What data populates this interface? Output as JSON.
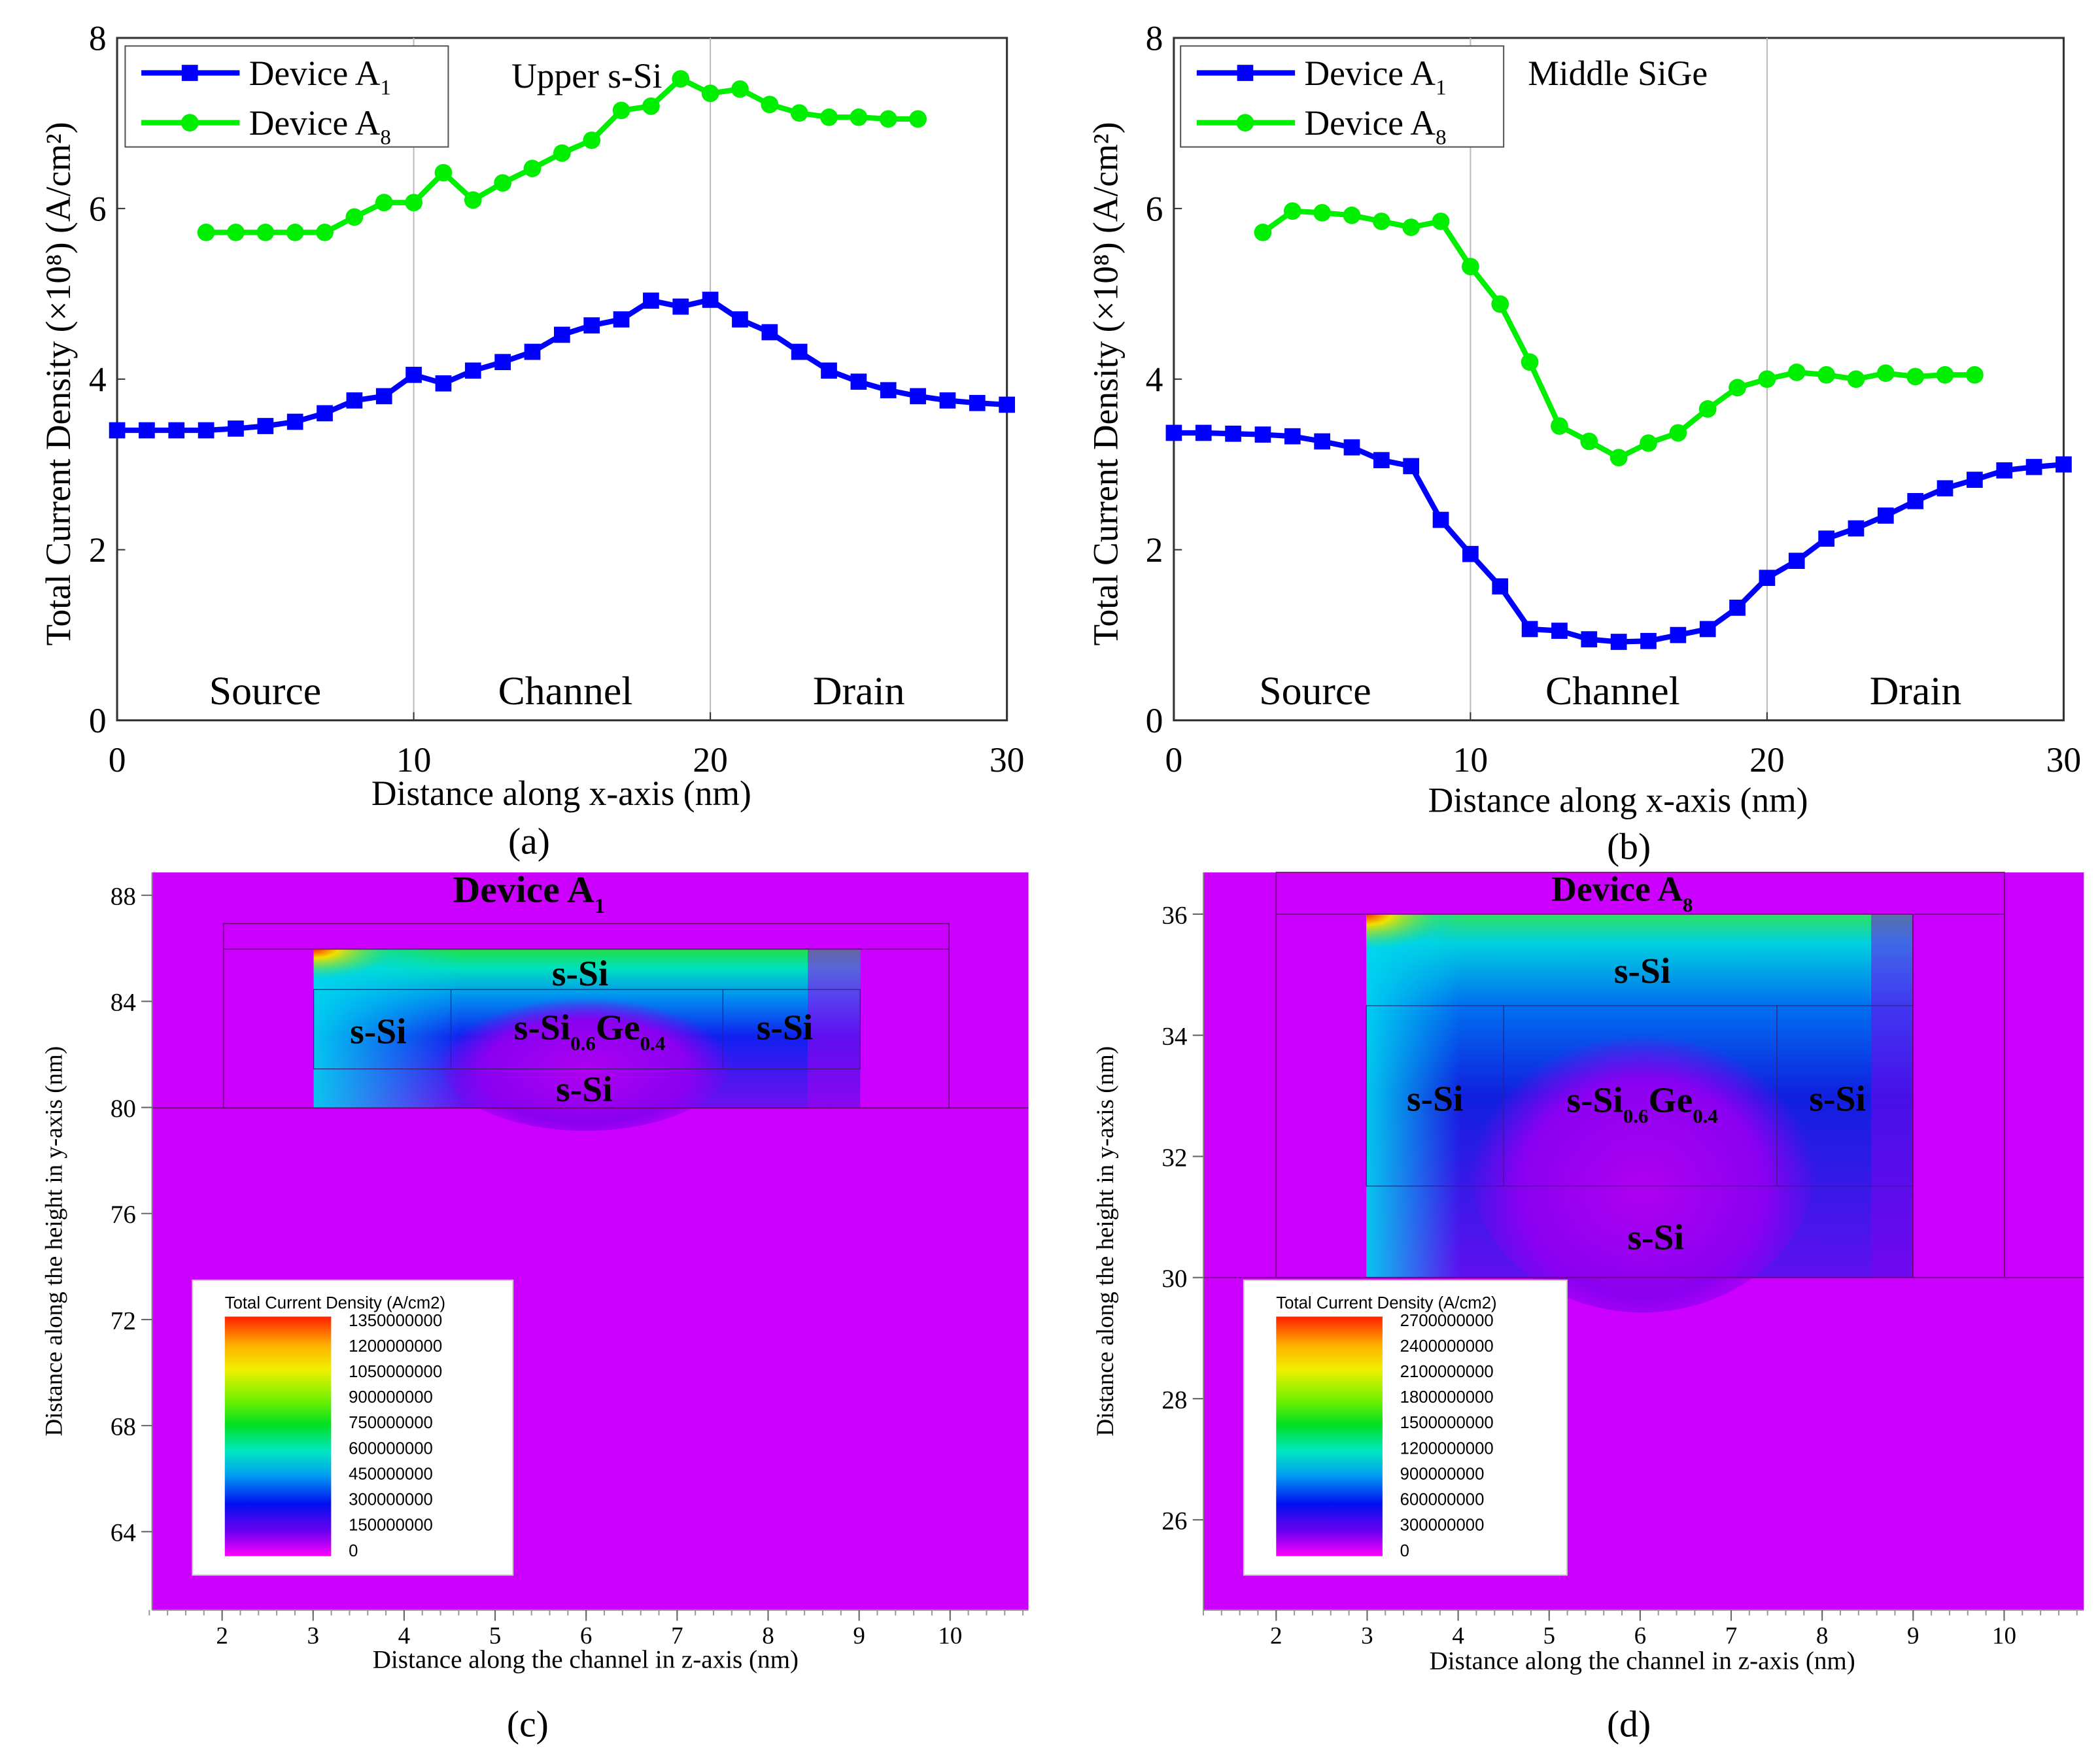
{
  "chart_data": [
    {
      "id": "a",
      "type": "line",
      "panel_label": "(a)",
      "annotation": "Upper s-Si",
      "xlabel": "Distance along x-axis (nm)",
      "ylabel": "Total Current Density (×10⁸) (A/cm²)",
      "xlim": [
        0,
        30
      ],
      "ylim": [
        0,
        8
      ],
      "xticks": [
        "0",
        "10",
        "20",
        "30"
      ],
      "yticks": [
        "0",
        "2",
        "4",
        "6",
        "8"
      ],
      "region_labels": [
        "Source",
        "Channel",
        "Drain"
      ],
      "grid": "vertical lines at x=10 and x=20",
      "legend_position": "top-left",
      "series": [
        {
          "name": "Device A",
          "sub": "1",
          "color": "#0000ff",
          "marker": "square",
          "x": [
            0,
            1,
            2,
            3,
            4,
            5,
            6,
            7,
            8,
            9,
            10,
            11,
            12,
            13,
            14,
            15,
            16,
            17,
            18,
            19,
            20,
            21,
            22,
            23,
            24,
            25,
            26,
            27,
            28,
            29,
            30
          ],
          "y": [
            3.4,
            3.4,
            3.4,
            3.4,
            3.42,
            3.45,
            3.5,
            3.6,
            3.75,
            3.8,
            4.05,
            3.95,
            4.1,
            4.2,
            4.32,
            4.52,
            4.63,
            4.7,
            4.92,
            4.85,
            4.93,
            4.7,
            4.55,
            4.32,
            4.1,
            3.97,
            3.87,
            3.8,
            3.75,
            3.72,
            3.7
          ]
        },
        {
          "name": "Device A",
          "sub": "8",
          "color": "#00ee00",
          "marker": "circle",
          "x": [
            3,
            4,
            5,
            6,
            7,
            8,
            9,
            10,
            11,
            12,
            13,
            14,
            15,
            16,
            17,
            18,
            19,
            20,
            21,
            22,
            23,
            24,
            25,
            26,
            27
          ],
          "y": [
            5.72,
            5.72,
            5.72,
            5.72,
            5.72,
            5.9,
            6.07,
            6.07,
            6.42,
            6.1,
            6.3,
            6.47,
            6.65,
            6.8,
            7.15,
            7.2,
            7.52,
            7.35,
            7.4,
            7.22,
            7.12,
            7.07,
            7.07,
            7.05,
            7.05
          ]
        }
      ]
    },
    {
      "id": "b",
      "type": "line",
      "panel_label": "(b)",
      "annotation": "Middle SiGe",
      "xlabel": "Distance along x-axis (nm)",
      "ylabel": "Total Current Density (×10⁸) (A/cm²)",
      "xlim": [
        0,
        30
      ],
      "ylim": [
        0,
        8
      ],
      "xticks": [
        "0",
        "10",
        "20",
        "30"
      ],
      "yticks": [
        "0",
        "2",
        "4",
        "6",
        "8"
      ],
      "region_labels": [
        "Source",
        "Channel",
        "Drain"
      ],
      "grid": "vertical lines at x=10 and x=20",
      "legend_position": "top-left",
      "series": [
        {
          "name": "Device A",
          "sub": "1",
          "color": "#0000ff",
          "marker": "square",
          "x": [
            0,
            1,
            2,
            3,
            4,
            5,
            6,
            7,
            8,
            9,
            10,
            11,
            12,
            13,
            14,
            15,
            16,
            17,
            18,
            19,
            20,
            21,
            22,
            23,
            24,
            25,
            26,
            27,
            28,
            29,
            30
          ],
          "y": [
            3.37,
            3.37,
            3.36,
            3.35,
            3.33,
            3.27,
            3.2,
            3.05,
            2.98,
            2.35,
            1.95,
            1.57,
            1.07,
            1.05,
            0.95,
            0.92,
            0.93,
            1.0,
            1.07,
            1.32,
            1.67,
            1.87,
            2.13,
            2.25,
            2.4,
            2.57,
            2.72,
            2.82,
            2.93,
            2.97,
            3.0
          ]
        },
        {
          "name": "Device A",
          "sub": "8",
          "color": "#00ee00",
          "marker": "circle",
          "x": [
            3,
            4,
            5,
            6,
            7,
            8,
            9,
            10,
            11,
            12,
            13,
            14,
            15,
            16,
            17,
            18,
            19,
            20,
            21,
            22,
            23,
            24,
            25,
            26,
            27
          ],
          "y": [
            5.72,
            5.97,
            5.95,
            5.92,
            5.85,
            5.78,
            5.85,
            5.32,
            4.88,
            4.2,
            3.45,
            3.27,
            3.08,
            3.25,
            3.37,
            3.65,
            3.9,
            4.0,
            4.08,
            4.05,
            4.0,
            4.07,
            4.03,
            4.05,
            4.05
          ]
        }
      ]
    },
    {
      "id": "c",
      "type": "heatmap",
      "panel_label": "(c)",
      "title": {
        "name": "Device A",
        "sub": "1"
      },
      "xlabel": "Distance along the channel in z-axis (nm)",
      "ylabel": "Distance along the height in y-axis (nm)",
      "xticks": [
        "2",
        "3",
        "4",
        "5",
        "6",
        "7",
        "8",
        "9",
        "10"
      ],
      "yticks": [
        "88",
        "84",
        "80",
        "76",
        "72",
        "68",
        "64"
      ],
      "regions": {
        "top": "s-Si",
        "left": "s-Si",
        "right": "s-Si",
        "bottom": "s-Si",
        "center": {
          "base": "s-Si",
          "sub1": "0.6",
          "mid": "Ge",
          "sub2": "0.4"
        }
      },
      "colorbar": {
        "title": "Total Current Density (A/cm2)",
        "labels": [
          "1350000000",
          "1200000000",
          "1050000000",
          "900000000",
          "750000000",
          "600000000",
          "450000000",
          "300000000",
          "150000000",
          "0"
        ]
      }
    },
    {
      "id": "d",
      "type": "heatmap",
      "panel_label": "(d)",
      "title": {
        "name": "Device A",
        "sub": "8"
      },
      "xlabel": "Distance along the channel in z-axis (nm)",
      "ylabel": "Distance along the height in y-axis (nm)",
      "xticks": [
        "2",
        "3",
        "4",
        "5",
        "6",
        "7",
        "8",
        "9",
        "10"
      ],
      "yticks": [
        "36",
        "34",
        "32",
        "30",
        "28",
        "26"
      ],
      "regions": {
        "top": "s-Si",
        "left": "s-Si",
        "right": "s-Si",
        "bottom": "s-Si",
        "center": {
          "base": "s-Si",
          "sub1": "0.6",
          "mid": "Ge",
          "sub2": "0.4"
        }
      },
      "colorbar": {
        "title": "Total Current Density (A/cm2)",
        "labels": [
          "2700000000",
          "2400000000",
          "2100000000",
          "1800000000",
          "1500000000",
          "1200000000",
          "900000000",
          "600000000",
          "300000000",
          "0"
        ]
      }
    }
  ]
}
